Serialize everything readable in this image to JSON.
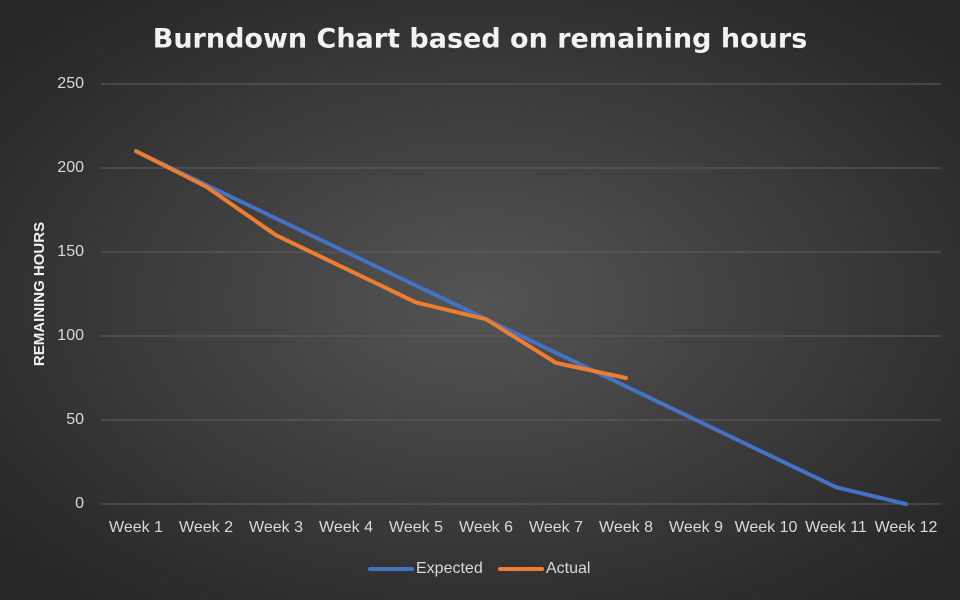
{
  "chart_data": {
    "type": "line",
    "title": "Burndown Chart based on remaining hours",
    "y_label": "REMAINING HOURS",
    "categories": [
      "Week 1",
      "Week 2",
      "Week 3",
      "Week 4",
      "Week 5",
      "Week 6",
      "Week 7",
      "Week 8",
      "Week 9",
      "Week 10",
      "Week 11",
      "Week 12"
    ],
    "series": [
      {
        "name": "Expected",
        "color": "#4472c4",
        "values": [
          210,
          190,
          170,
          150,
          130,
          110,
          90,
          70,
          50,
          30,
          10,
          0
        ]
      },
      {
        "name": "Actual",
        "color": "#ed7d31",
        "values": [
          210,
          189,
          160,
          140,
          120,
          110,
          84,
          75,
          null,
          null,
          null,
          null
        ]
      }
    ],
    "ylim": [
      0,
      250
    ],
    "yticks": [
      0,
      50,
      100,
      150,
      200,
      250
    ],
    "grid": true,
    "legend": "bottom"
  }
}
